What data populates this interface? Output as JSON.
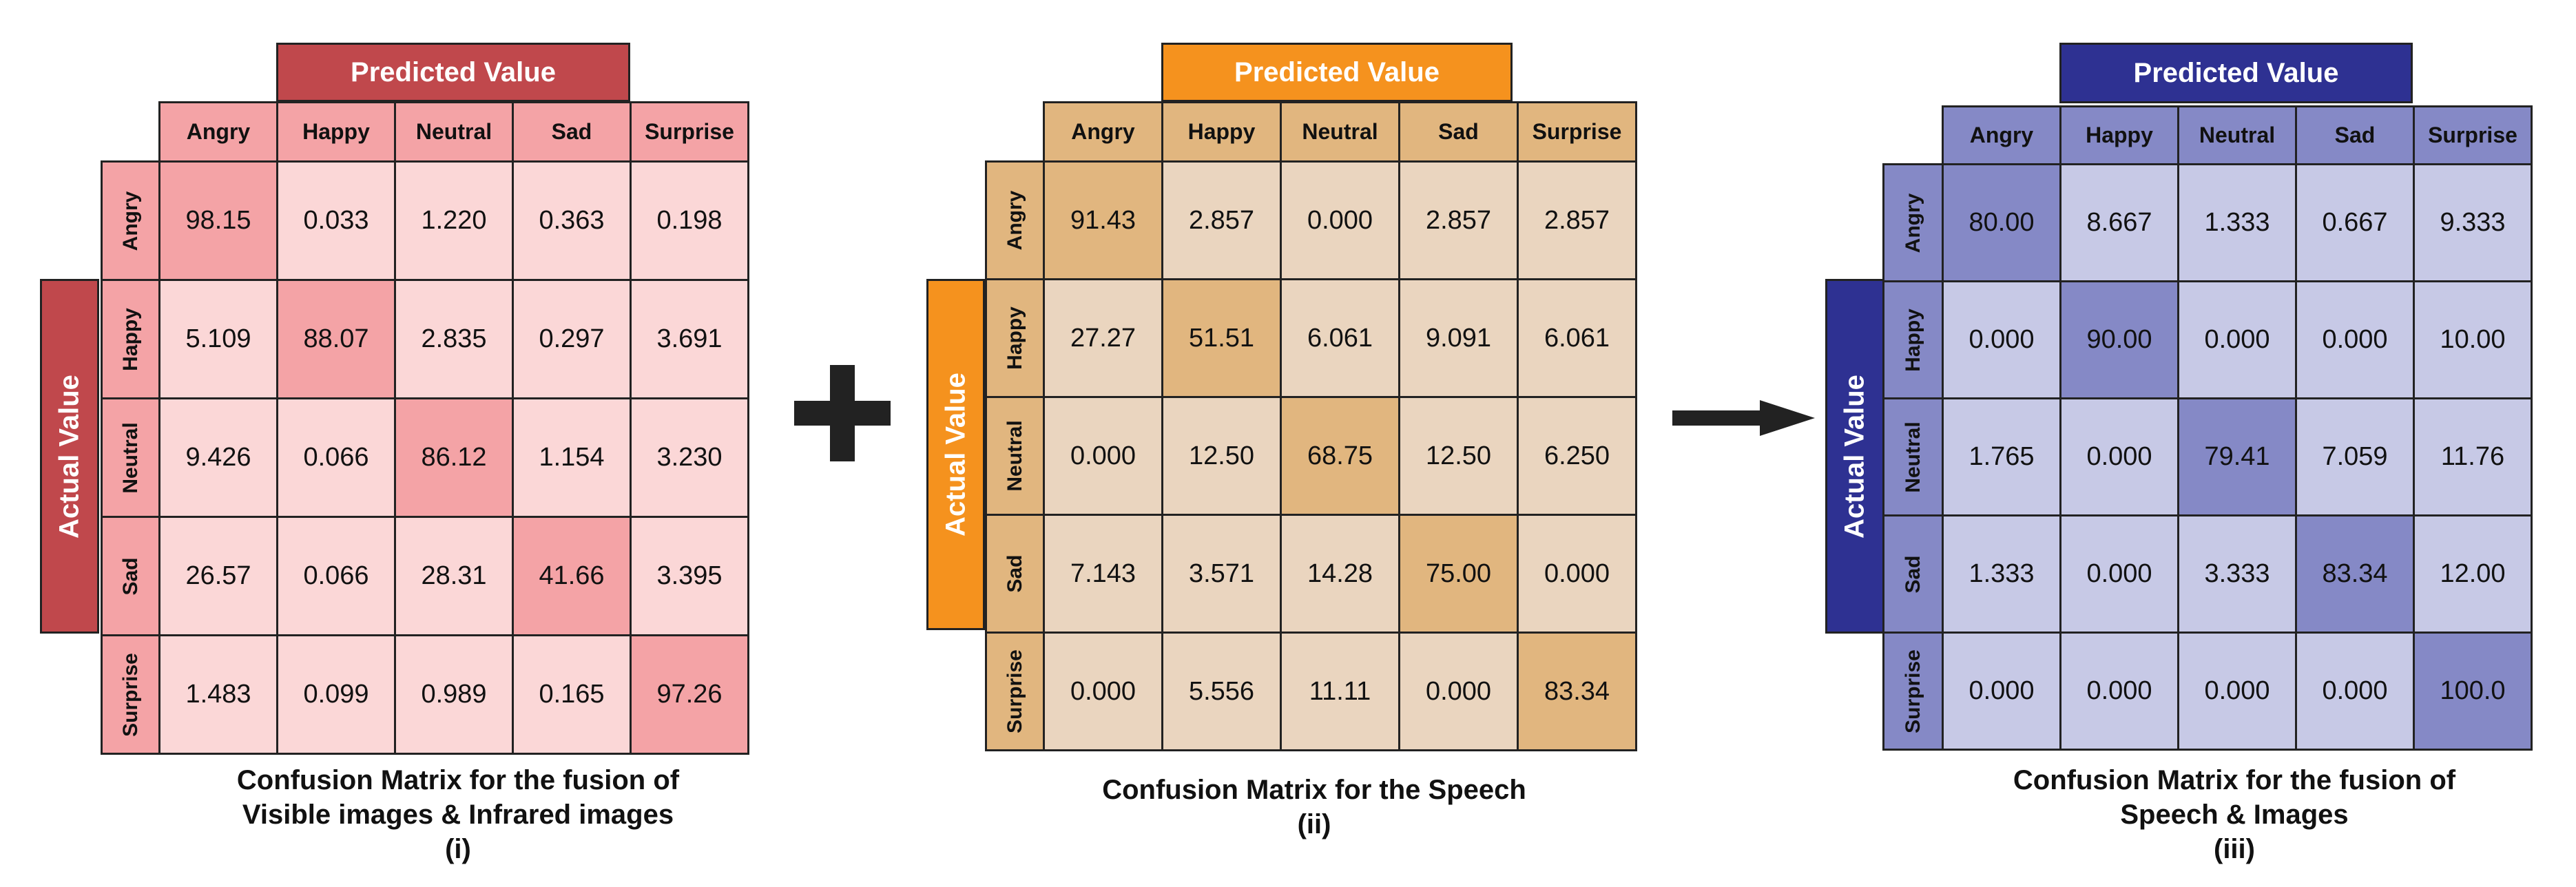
{
  "chart_data": [
    {
      "type": "heatmap",
      "title": "Confusion Matrix for the fusion of Visible images & Infrared images",
      "title_lines": [
        "Confusion Matrix for the fusion of",
        "Visible images & Infrared images"
      ],
      "caption_index": "(i)",
      "x_title": "Predicted Value",
      "y_title": "Actual Value",
      "columns": [
        "Angry",
        "Happy",
        "Neutral",
        "Sad",
        "Surprise"
      ],
      "rows": [
        "Angry",
        "Happy",
        "Neutral",
        "Sad",
        "Surprise"
      ],
      "values": [
        [
          "98.15",
          "0.033",
          "1.220",
          "0.363",
          "0.198"
        ],
        [
          "5.109",
          "88.07",
          "2.835",
          "0.297",
          "3.691"
        ],
        [
          "9.426",
          "0.066",
          "86.12",
          "1.154",
          "3.230"
        ],
        [
          "26.57",
          "0.066",
          "28.31",
          "41.66",
          "3.395"
        ],
        [
          "1.483",
          "0.099",
          "0.989",
          "0.165",
          "97.26"
        ]
      ],
      "colors": {
        "title_bg": "#c0484c",
        "header_bg": "#f4a3a6",
        "cell_bg": "#fbd7d7",
        "diag_bg": "#f4a3a6"
      }
    },
    {
      "type": "heatmap",
      "title": "Confusion Matrix for the Speech",
      "title_lines": [
        "Confusion Matrix for the Speech"
      ],
      "caption_index": "(ii)",
      "x_title": "Predicted Value",
      "y_title": "Actual Value",
      "columns": [
        "Angry",
        "Happy",
        "Neutral",
        "Sad",
        "Surprise"
      ],
      "rows": [
        "Angry",
        "Happy",
        "Neutral",
        "Sad",
        "Surprise"
      ],
      "values": [
        [
          "91.43",
          "2.857",
          "0.000",
          "2.857",
          "2.857"
        ],
        [
          "27.27",
          "51.51",
          "6.061",
          "9.091",
          "6.061"
        ],
        [
          "0.000",
          "12.50",
          "68.75",
          "12.50",
          "6.250"
        ],
        [
          "7.143",
          "3.571",
          "14.28",
          "75.00",
          "0.000"
        ],
        [
          "0.000",
          "5.556",
          "11.11",
          "0.000",
          "83.34"
        ]
      ],
      "colors": {
        "title_bg": "#f5921e",
        "header_bg": "#e1b67f",
        "cell_bg": "#ead5bf",
        "diag_bg": "#e1b67f"
      }
    },
    {
      "type": "heatmap",
      "title": "Confusion Matrix for the fusion of Speech & Images",
      "title_lines": [
        "Confusion Matrix for the fusion of",
        "Speech & Images"
      ],
      "caption_index": "(iii)",
      "x_title": "Predicted Value",
      "y_title": "Actual Value",
      "columns": [
        "Angry",
        "Happy",
        "Neutral",
        "Sad",
        "Surprise"
      ],
      "rows": [
        "Angry",
        "Happy",
        "Neutral",
        "Sad",
        "Surprise"
      ],
      "values": [
        [
          "80.00",
          "8.667",
          "1.333",
          "0.667",
          "9.333"
        ],
        [
          "0.000",
          "90.00",
          "0.000",
          "0.000",
          "10.00"
        ],
        [
          "1.765",
          "0.000",
          "79.41",
          "7.059",
          "11.76"
        ],
        [
          "1.333",
          "0.000",
          "3.333",
          "83.34",
          "12.00"
        ],
        [
          "0.000",
          "0.000",
          "0.000",
          "0.000",
          "100.0"
        ]
      ],
      "colors": {
        "title_bg": "#2e3192",
        "header_bg": "#8589c6",
        "cell_bg": "#c7c9e6",
        "diag_bg": "#8589c6"
      }
    }
  ]
}
